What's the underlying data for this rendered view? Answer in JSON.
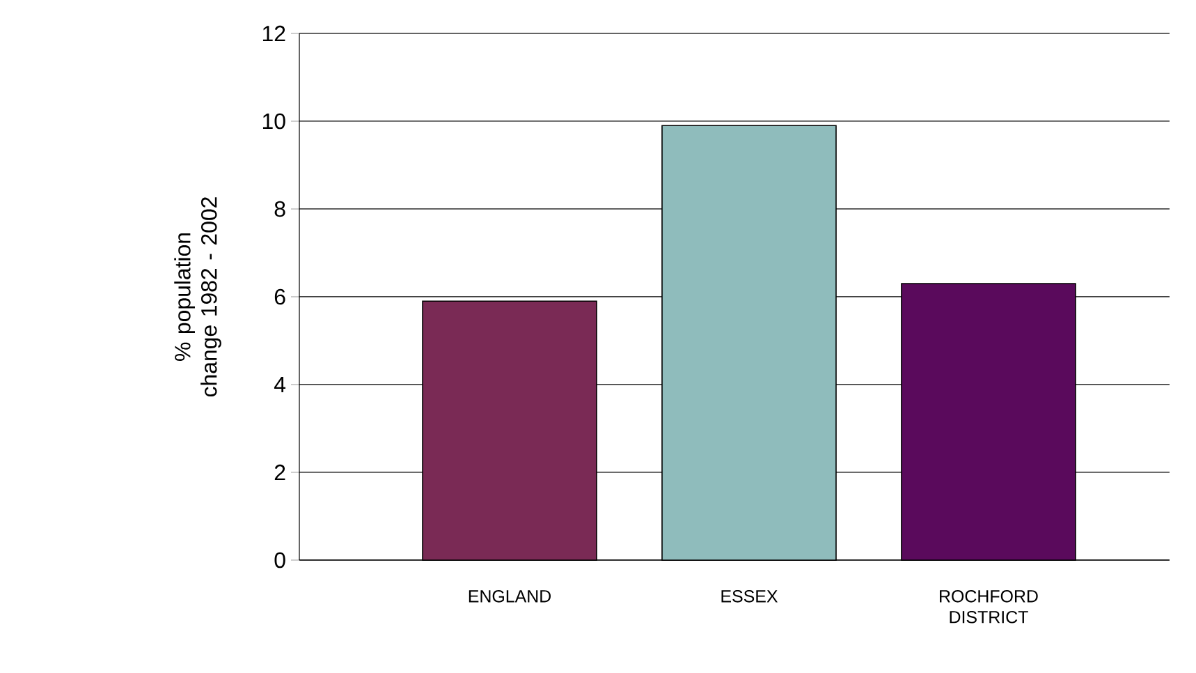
{
  "chart_data": {
    "type": "bar",
    "ylabel": "% population change 1982 - 2002",
    "categories": [
      "ENGLAND",
      "ESSEX",
      "ROCHFORD DISTRICT"
    ],
    "values": [
      5.9,
      9.9,
      6.3
    ],
    "colors": [
      "#7a2a55",
      "#8fbcbc",
      "#5a0a5c"
    ],
    "ylim": [
      0,
      12
    ],
    "yticks": [
      0,
      2,
      4,
      6,
      8,
      10,
      12
    ],
    "grid": "y"
  }
}
